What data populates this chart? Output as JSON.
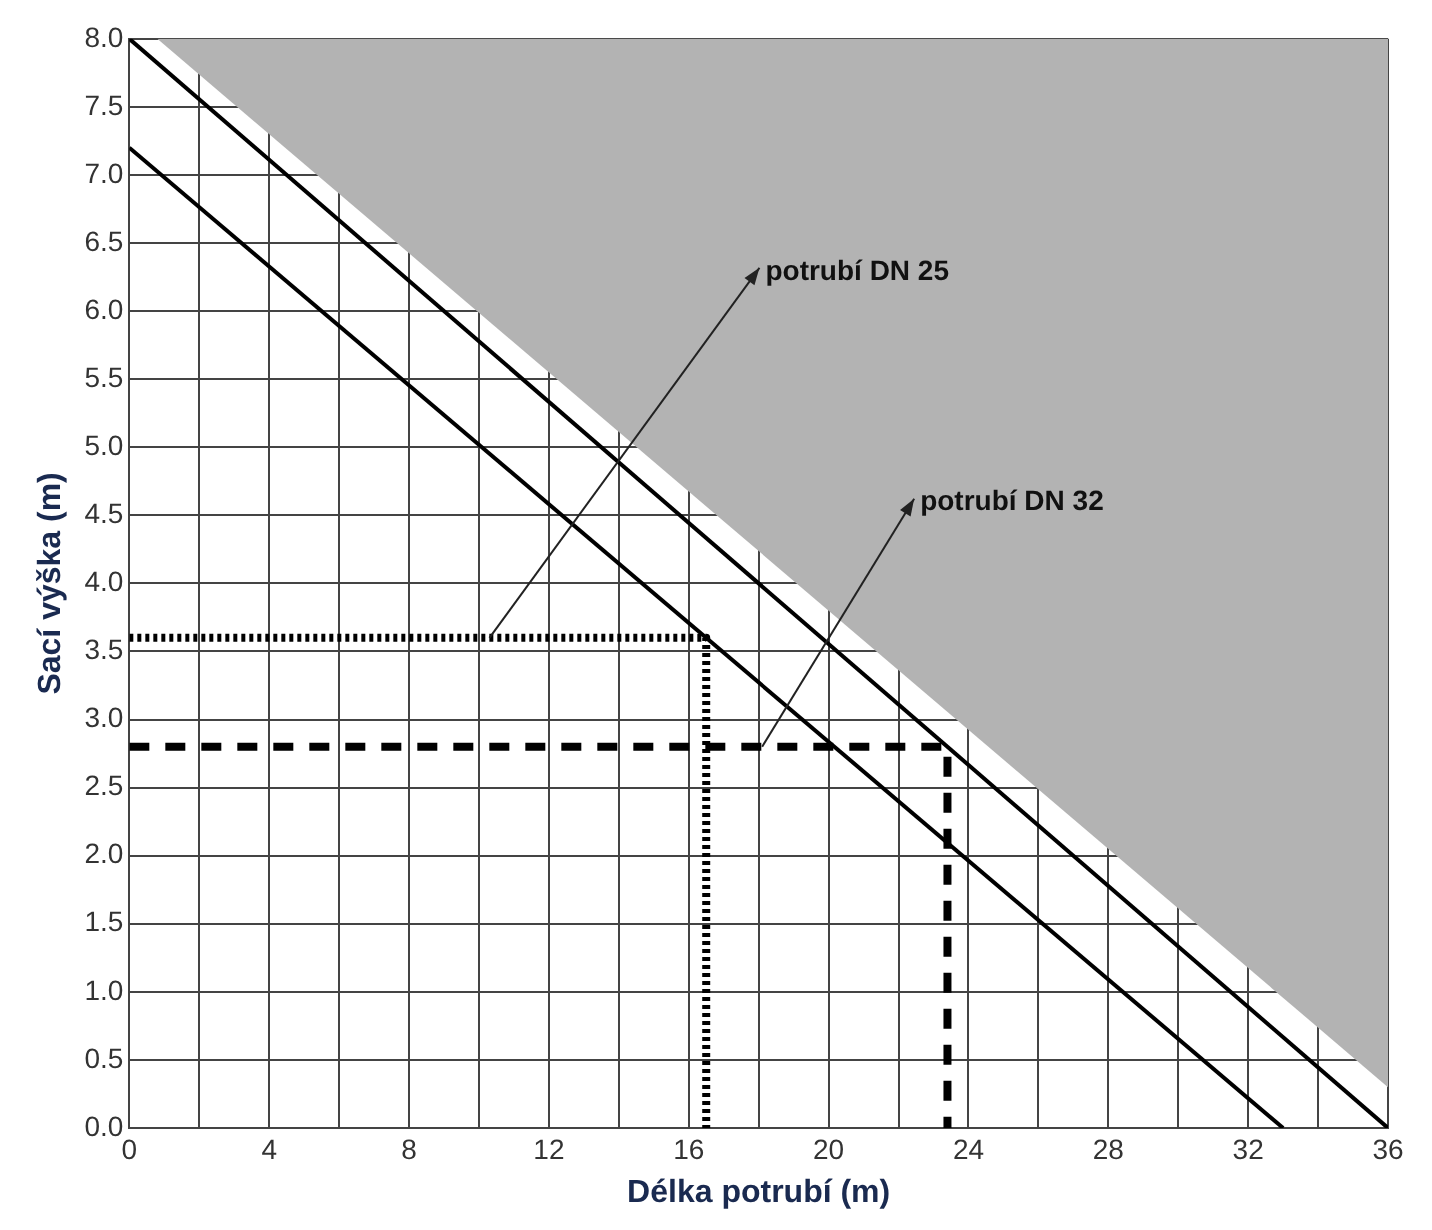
{
  "chart_data": {
    "type": "line",
    "xlabel": "Délka potrubí (m)",
    "ylabel": "Sací výška (m)",
    "xlim": [
      0,
      36
    ],
    "ylim": [
      0,
      8
    ],
    "xticks": [
      0,
      {
        "value": 2,
        "label": null
      },
      4,
      {
        "value": 6,
        "label": null
      },
      8,
      {
        "value": 10,
        "label": null
      },
      12,
      {
        "value": 14,
        "label": null
      },
      16,
      {
        "value": 18,
        "label": null
      },
      20,
      {
        "value": 22,
        "label": null
      },
      24,
      {
        "value": 26,
        "label": null
      },
      28,
      {
        "value": 30,
        "label": null
      },
      32,
      {
        "value": 34,
        "label": null
      },
      36
    ],
    "yticks": [
      {
        "value": 0,
        "label": "0.0"
      },
      {
        "value": 0.5,
        "label": "0.5"
      },
      {
        "value": 1,
        "label": "1.0"
      },
      {
        "value": 1.5,
        "label": "1.5"
      },
      {
        "value": 2,
        "label": "2.0"
      },
      {
        "value": 2.5,
        "label": "2.5"
      },
      {
        "value": 3,
        "label": "3.0"
      },
      {
        "value": 3.5,
        "label": "3.5"
      },
      {
        "value": 4,
        "label": "4.0"
      },
      {
        "value": 4.5,
        "label": "4.5"
      },
      {
        "value": 5,
        "label": "5.0"
      },
      {
        "value": 5.5,
        "label": "5.5"
      },
      {
        "value": 6,
        "label": "6.0"
      },
      {
        "value": 6.5,
        "label": "6.5"
      },
      {
        "value": 7,
        "label": "7.0"
      },
      {
        "value": 7.5,
        "label": "7.5"
      },
      {
        "value": 8,
        "label": "8.0"
      }
    ],
    "grid": true,
    "legend": false,
    "marker": "none",
    "series": [
      {
        "type": "area",
        "color": "#b3b3b3",
        "x": [
          0.8,
          36
        ],
        "values": [
          8,
          0.3
        ]
      },
      {
        "type": "line",
        "color": "#000000",
        "x": [
          0,
          33
        ],
        "values": [
          7.2,
          0
        ],
        "line_style": "solid"
      },
      {
        "type": "line",
        "color": "#000000",
        "x": [
          0,
          36
        ],
        "values": [
          8,
          0
        ],
        "line_style": "solid"
      },
      {
        "type": "line",
        "color": "#000000",
        "x": [
          0,
          16.5,
          16.5
        ],
        "values": [
          3.6,
          3.6,
          0
        ],
        "line_style": "dotted"
      },
      {
        "type": "line",
        "color": "#000000",
        "x": [
          0,
          23.4,
          23.4
        ],
        "values": [
          2.8,
          2.8,
          0
        ],
        "line_style": "dashed"
      }
    ],
    "annotations": [
      {
        "text": "potrubí DN 25",
        "x": 10.3,
        "y": 3.6
      },
      {
        "text": "potrubí DN 32",
        "x": 18.1,
        "y": 2.8
      }
    ]
  }
}
